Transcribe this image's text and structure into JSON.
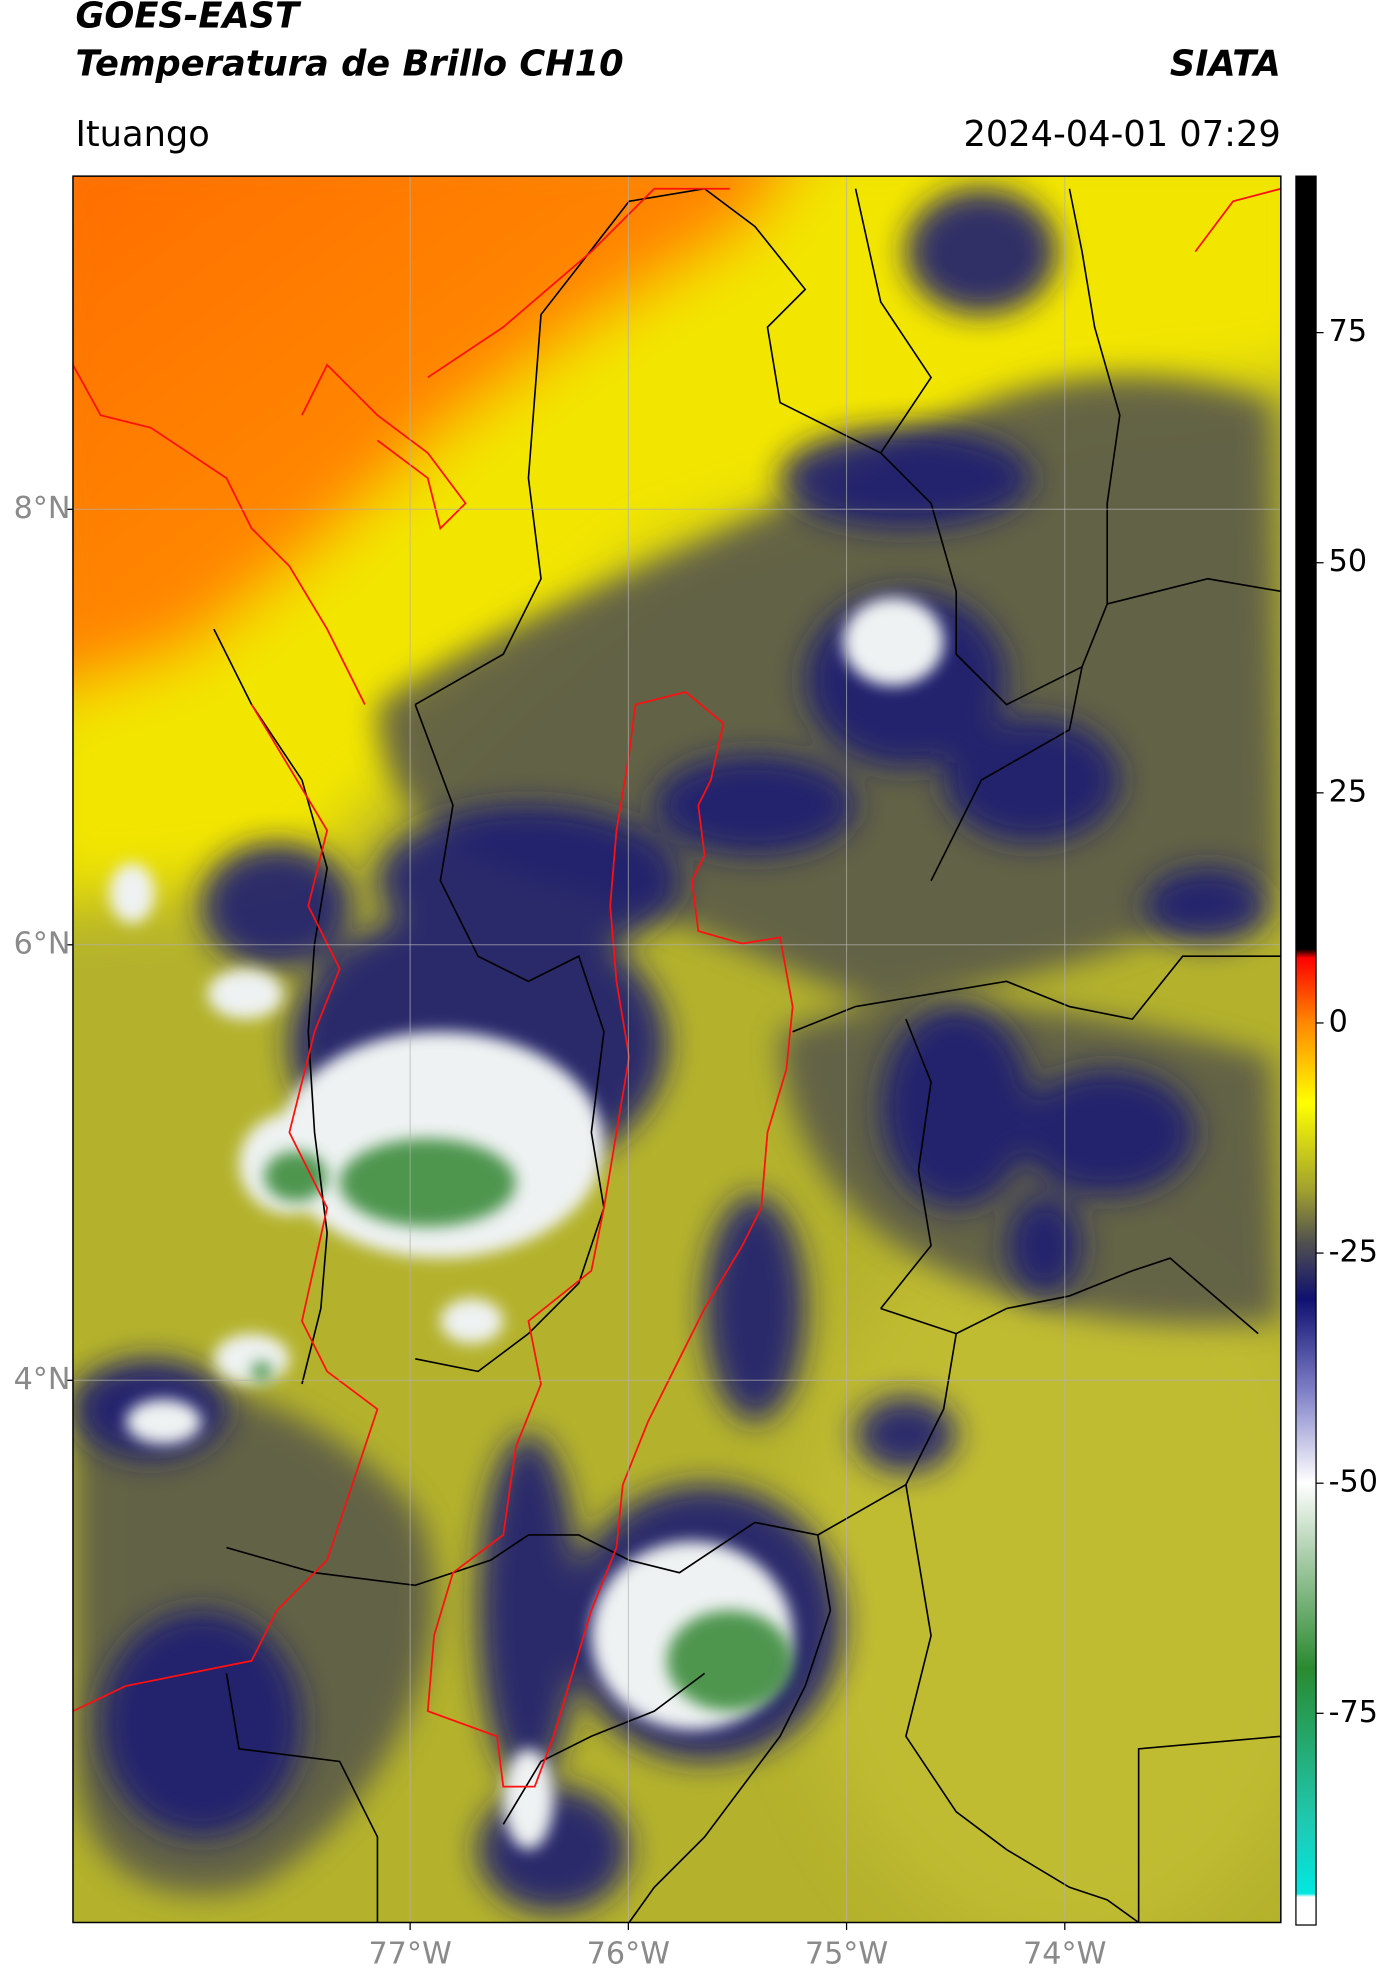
{
  "chart_data": {
    "type": "map",
    "title": "GOES-EAST",
    "subtitle": "Temperatura de Brillo CH10",
    "source": "SIATA",
    "region": "Ituango",
    "timestamp": "2024-04-01 07:29",
    "xlim": [
      -78.545,
      -73.01
    ],
    "ylim": [
      1.51,
      9.53
    ],
    "xticks": [
      {
        "value": -77,
        "label": "77°W"
      },
      {
        "value": -76,
        "label": "76°W"
      },
      {
        "value": -75,
        "label": "75°W"
      },
      {
        "value": -74,
        "label": "74°W"
      }
    ],
    "yticks": [
      {
        "value": 8,
        "label": "8°N"
      },
      {
        "value": 6,
        "label": "6°N"
      },
      {
        "value": 4,
        "label": "4°N"
      }
    ],
    "grid": true,
    "colorbar": {
      "lim": [
        -98,
        92
      ],
      "ticks": [
        75,
        50,
        25,
        0,
        -25,
        -50,
        -75
      ]
    }
  }
}
